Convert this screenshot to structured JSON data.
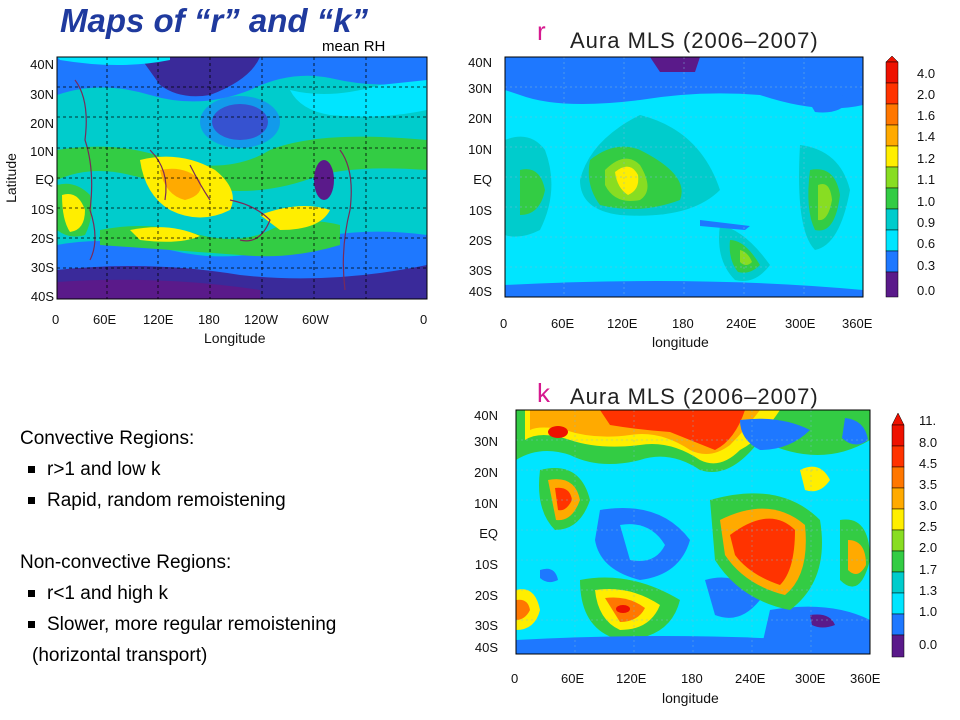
{
  "slide": {
    "title": "Maps of “r” and “k”",
    "subtitle": "mean RH"
  },
  "left_map": {
    "y_ticks": [
      "40N",
      "30N",
      "20N",
      "10N",
      "EQ",
      "10S",
      "20S",
      "30S",
      "40S"
    ],
    "x_ticks": [
      "0",
      "60E",
      "120E",
      "180",
      "120W",
      "60W",
      "0"
    ],
    "x_label": "Longitude",
    "y_label": "Latitude"
  },
  "r_plot": {
    "letter": "r",
    "title": "Aura MLS (2006–2007)",
    "y_ticks": [
      "40N",
      "30N",
      "20N",
      "10N",
      "EQ",
      "10S",
      "20S",
      "30S",
      "40S"
    ],
    "x_ticks": [
      "0",
      "60E",
      "120E",
      "180",
      "240E",
      "300E",
      "360E"
    ],
    "x_label": "longitude",
    "colorbar": [
      "4.0",
      "2.0",
      "1.6",
      "1.4",
      "1.2",
      "1.1",
      "1.0",
      "0.9",
      "0.6",
      "0.3",
      "0.0"
    ]
  },
  "k_plot": {
    "letter": "k",
    "title": "Aura MLS (2006–2007)",
    "y_ticks": [
      "40N",
      "30N",
      "20N",
      "10N",
      "EQ",
      "10S",
      "20S",
      "30S",
      "40S"
    ],
    "x_ticks": [
      "0",
      "60E",
      "120E",
      "180",
      "240E",
      "300E",
      "360E"
    ],
    "x_label": "longitude",
    "colorbar": [
      "11.",
      "8.0",
      "4.5",
      "3.5",
      "3.0",
      "2.5",
      "2.0",
      "1.7",
      "1.3",
      "1.0",
      "0.0"
    ]
  },
  "text": {
    "convective_heading": "Convective Regions:",
    "convective_bullets": [
      "r>1 and low k",
      "Rapid, random remoistening"
    ],
    "nonconvective_heading": "Non-convective Regions:",
    "nonconvective_bullets": [
      "r<1 and high k",
      "Slower, more regular remoistening"
    ],
    "nonconvective_note": "(horizontal transport)"
  },
  "colors": {
    "title": "#1f3a9e",
    "letter": "#d6198f",
    "scale": [
      "#ee1100",
      "#ff3300",
      "#ff7700",
      "#ffaa00",
      "#ffee00",
      "#88dd22",
      "#33cc44",
      "#00cccc",
      "#00e5ff",
      "#1e78ff",
      "#5a1a8a"
    ]
  }
}
